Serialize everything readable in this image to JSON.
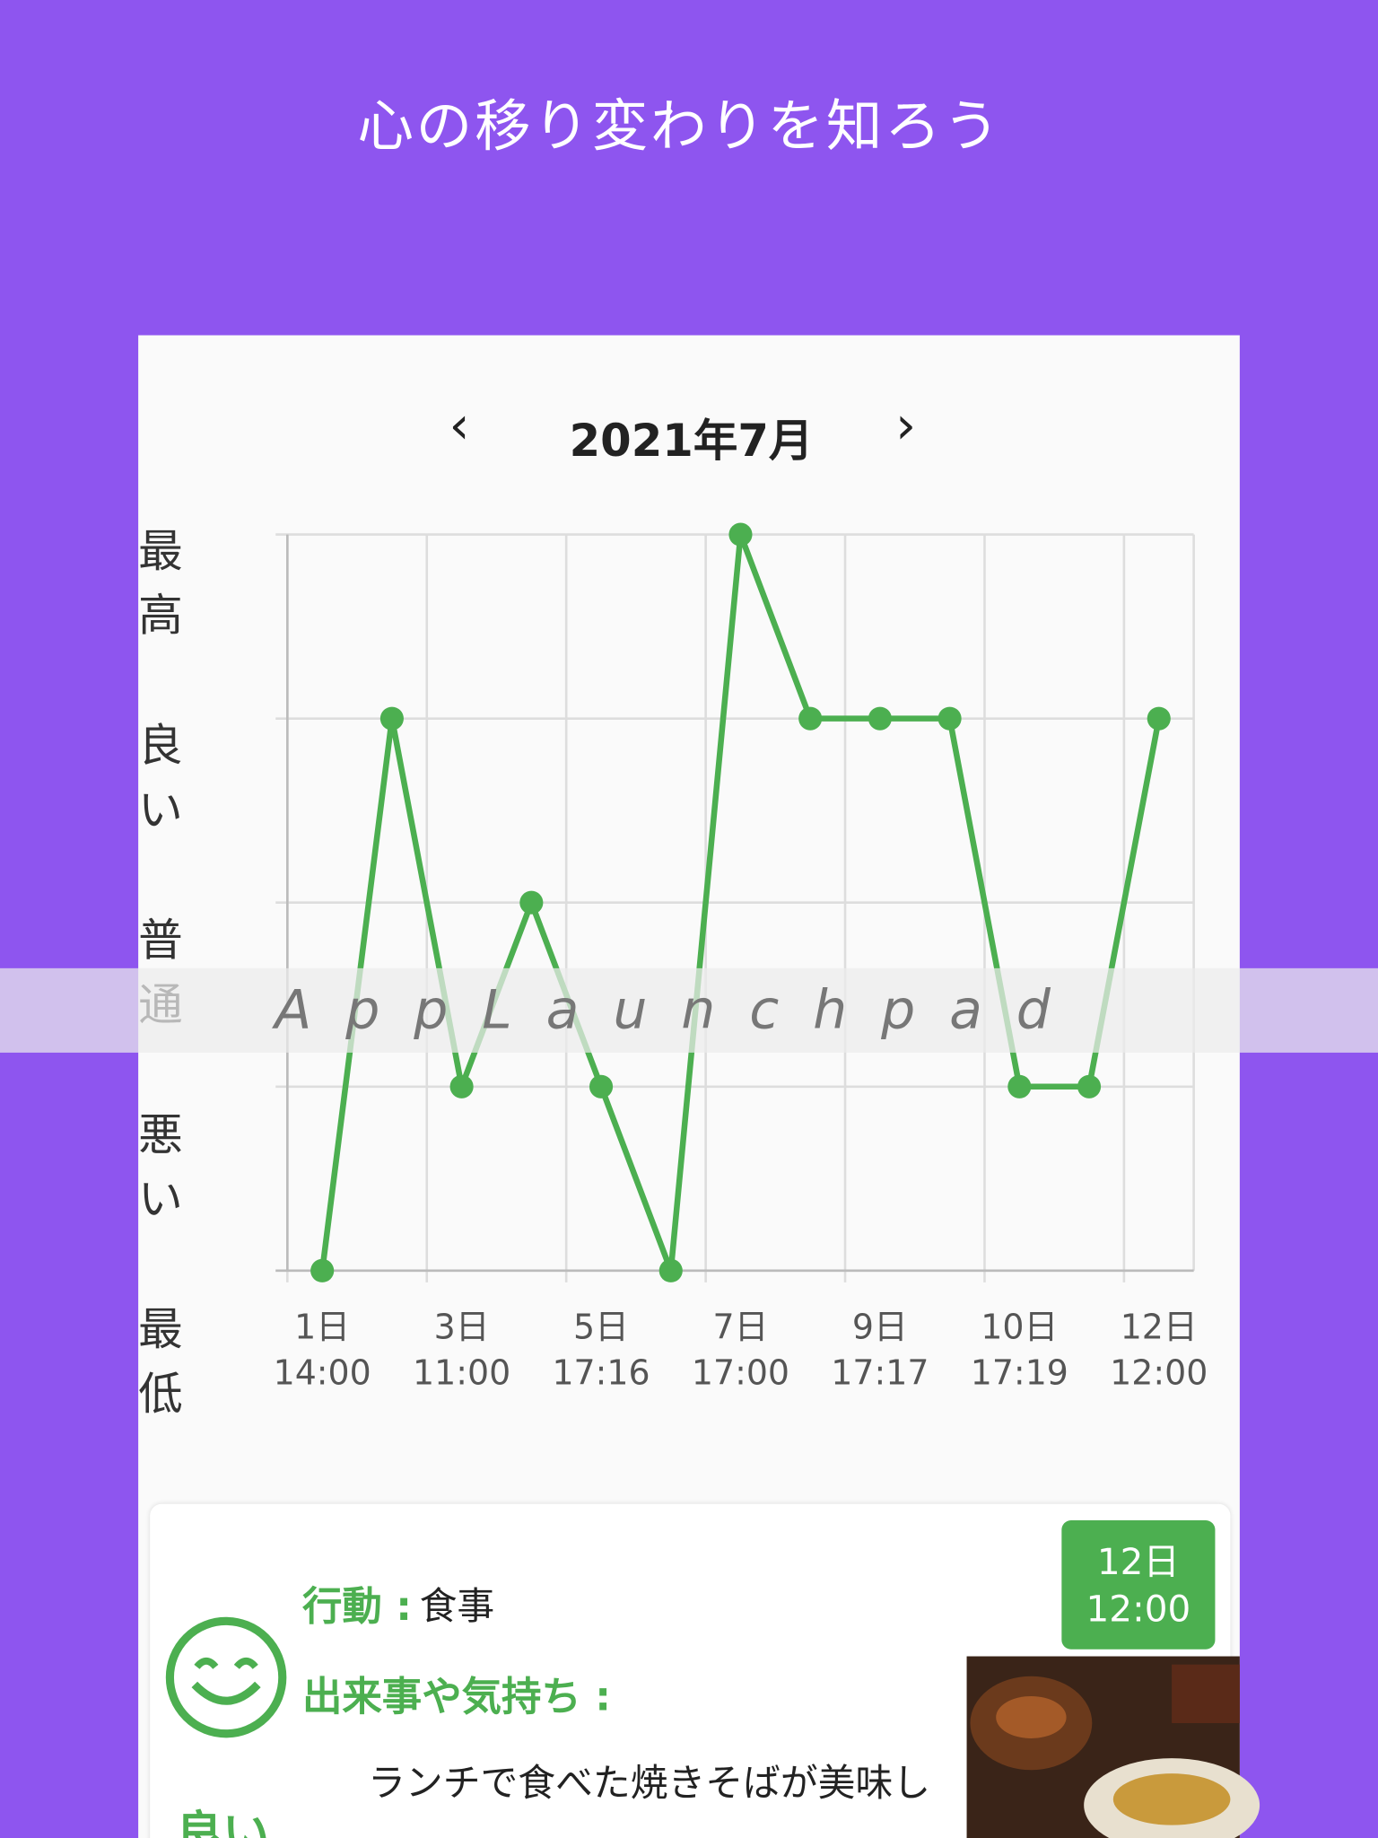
{
  "header": {
    "title": "心の移り変わりを知ろう"
  },
  "chart_data": {
    "type": "line",
    "title": "2021年7月",
    "categories": [
      "1日\n14:00",
      null,
      "3日\n11:00",
      null,
      "5日\n17:16",
      null,
      "7日\n17:00",
      null,
      "9日\n17:17",
      null,
      "10日\n17:19",
      null,
      "12日\n12:00"
    ],
    "series": [
      {
        "color": "#4caf50",
        "values": [
          1,
          4,
          2,
          3,
          2,
          1,
          5,
          4,
          4,
          4,
          2,
          2,
          4
        ]
      }
    ],
    "ylim": [
      1,
      5
    ],
    "yticks": [
      {
        "value": 1,
        "label": "最低"
      },
      {
        "value": 2,
        "label": "悪い"
      },
      {
        "value": 3,
        "label": "普通"
      },
      {
        "value": 4,
        "label": "良い"
      },
      {
        "value": 5,
        "label": "最高"
      }
    ],
    "grid": true
  },
  "watermark": "AppLaunchpad",
  "card": {
    "action_label": "行動 :",
    "action": "食事",
    "feeling_label": "出来事や気持ち :",
    "note": "ランチで食べた焼きそばが美味し",
    "mood": "良い",
    "timestamp": "12日\n12:00"
  }
}
